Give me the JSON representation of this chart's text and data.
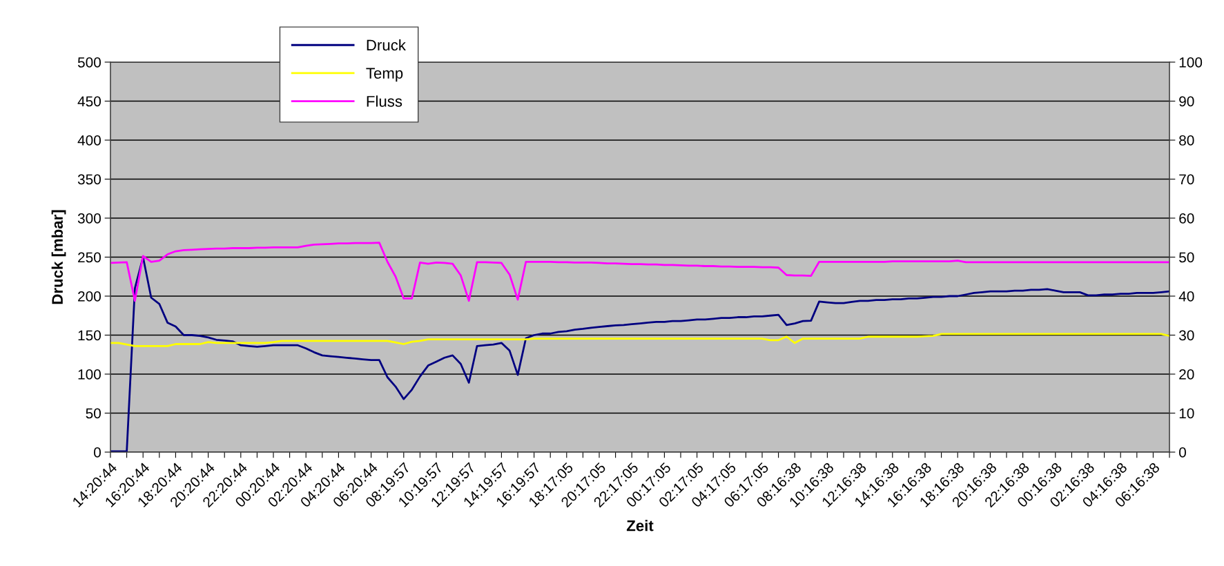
{
  "chart_data": {
    "type": "line",
    "xlabel": "Zeit",
    "ylabel": "Druck [mbar]",
    "ylim": [
      0,
      500
    ],
    "yticks": [
      0,
      50,
      100,
      150,
      200,
      250,
      300,
      350,
      400,
      450,
      500
    ],
    "y2lim": [
      0,
      100
    ],
    "y2ticks": [
      0,
      10,
      20,
      30,
      40,
      50,
      60,
      70,
      80,
      90,
      100
    ],
    "categories": [
      "14:20:44",
      null,
      null,
      null,
      "16:20:44",
      null,
      null,
      null,
      "18:20:44",
      null,
      null,
      null,
      "20:20:44",
      null,
      null,
      null,
      "22:20:44",
      null,
      null,
      null,
      "00:20:44",
      null,
      null,
      null,
      "02:20:44",
      null,
      null,
      null,
      "04:20:44",
      null,
      null,
      null,
      "06:20:44",
      null,
      null,
      null,
      "08:19:57",
      null,
      null,
      null,
      "10:19:57",
      null,
      null,
      null,
      "12:19:57",
      null,
      null,
      null,
      "14:19:57",
      null,
      null,
      null,
      "16:19:57",
      null,
      null,
      null,
      "18:17:05",
      null,
      null,
      null,
      "20:17:05",
      null,
      null,
      null,
      "22:17:05",
      null,
      null,
      null,
      "00:17:05",
      null,
      null,
      null,
      "02:17:05",
      null,
      null,
      null,
      "04:17:05",
      null,
      null,
      null,
      "06:17:05",
      null,
      null,
      null,
      "08:16:38",
      null,
      null,
      null,
      "10:16:38",
      null,
      null,
      null,
      "12:16:38",
      null,
      null,
      null,
      "14:16:38",
      null,
      null,
      null,
      "16:16:38",
      null,
      null,
      null,
      "18:16:38",
      null,
      null,
      null,
      "20:16:38",
      null,
      null,
      null,
      "22:16:38",
      null,
      null,
      null,
      "00:16:38",
      null,
      null,
      null,
      "02:16:38",
      null,
      null,
      null,
      "04:16:38",
      null,
      null,
      null,
      "06:16:38",
      null,
      null
    ],
    "grid": "y",
    "legend": "top left",
    "marker": "none",
    "line_style": "solid",
    "series": [
      {
        "name": "Druck",
        "color": "#000080",
        "values": [
          1,
          1,
          1,
          210,
          250,
          198,
          190,
          166,
          161,
          150,
          150,
          149,
          147,
          144,
          143,
          142,
          137,
          136,
          135,
          136,
          137,
          137,
          137,
          137,
          133,
          128,
          124,
          123,
          122,
          121,
          120,
          119,
          118,
          118,
          96,
          84,
          68,
          80,
          97,
          111,
          116,
          121,
          124,
          113,
          89,
          136,
          137,
          138,
          140,
          130,
          99,
          146,
          150,
          152,
          152,
          154,
          155,
          157,
          158,
          159.5,
          160.5,
          161.5,
          162.5,
          163,
          164,
          165,
          166,
          167,
          167,
          168,
          168,
          169,
          170,
          170,
          171,
          172,
          172,
          173,
          173,
          174,
          174,
          175,
          176,
          163,
          165,
          168,
          168.5,
          193,
          192,
          191,
          191,
          192.5,
          194,
          194,
          195,
          195,
          196,
          196,
          197,
          197,
          198,
          199,
          199,
          200,
          200,
          202,
          204,
          205,
          206,
          206,
          206,
          207,
          207,
          208,
          208,
          209,
          207,
          205,
          205,
          205,
          201,
          201,
          202,
          202,
          203,
          203,
          204,
          204,
          204,
          205,
          206
        ]
      },
      {
        "name": "Temp",
        "color": "#ffff00",
        "axis": "y2",
        "values": [
          28,
          28,
          27.6,
          27.2,
          27.2,
          27.2,
          27.2,
          27.2,
          27.7,
          27.7,
          27.7,
          27.7,
          28.2,
          28,
          28,
          28,
          28,
          28,
          28,
          28,
          28.2,
          28.5,
          28.5,
          28.5,
          28.5,
          28.5,
          28.5,
          28.5,
          28.5,
          28.5,
          28.5,
          28.5,
          28.5,
          28.5,
          28.5,
          28.1,
          27.7,
          28.3,
          28.5,
          28.9,
          28.9,
          28.9,
          28.9,
          28.9,
          28.9,
          28.9,
          28.9,
          28.9,
          28.9,
          28.9,
          28.9,
          28.9,
          29.1,
          29.1,
          29.1,
          29.1,
          29.1,
          29.1,
          29.1,
          29.1,
          29.1,
          29.1,
          29.1,
          29.1,
          29.1,
          29.1,
          29.1,
          29.1,
          29.1,
          29.1,
          29.1,
          29.1,
          29.1,
          29.1,
          29.1,
          29.1,
          29.1,
          29.1,
          29.1,
          29.1,
          29.1,
          28.7,
          28.7,
          29.6,
          28,
          29.1,
          29.1,
          29.1,
          29.1,
          29.1,
          29.1,
          29.1,
          29.1,
          29.6,
          29.6,
          29.6,
          29.6,
          29.6,
          29.6,
          29.6,
          29.7,
          29.8,
          30.3,
          30.3,
          30.3,
          30.3,
          30.3,
          30.3,
          30.3,
          30.3,
          30.3,
          30.3,
          30.3,
          30.3,
          30.3,
          30.3,
          30.3,
          30.3,
          30.3,
          30.3,
          30.3,
          30.3,
          30.3,
          30.3,
          30.3,
          30.3,
          30.3,
          30.3,
          30.3,
          30.3,
          29.8
        ]
      },
      {
        "name": "Fluss",
        "color": "#ff00ff",
        "axis": "y2",
        "values": [
          48.5,
          48.6,
          48.7,
          38.8,
          50.3,
          48.8,
          49.1,
          50.7,
          51.5,
          51.8,
          51.9,
          52,
          52.1,
          52.2,
          52.2,
          52.3,
          52.3,
          52.3,
          52.4,
          52.4,
          52.5,
          52.5,
          52.5,
          52.5,
          52.9,
          53.2,
          53.3,
          53.4,
          53.5,
          53.5,
          53.6,
          53.6,
          53.6,
          53.7,
          48.8,
          45,
          39.4,
          39.4,
          48.6,
          48.3,
          48.6,
          48.5,
          48.3,
          45.3,
          38.8,
          48.7,
          48.7,
          48.6,
          48.5,
          45.5,
          39.1,
          48.8,
          48.8,
          48.8,
          48.8,
          48.7,
          48.7,
          48.6,
          48.6,
          48.6,
          48.5,
          48.4,
          48.4,
          48.3,
          48.2,
          48.2,
          48.1,
          48.1,
          48,
          48,
          47.9,
          47.8,
          47.8,
          47.7,
          47.7,
          47.6,
          47.6,
          47.5,
          47.5,
          47.5,
          47.4,
          47.4,
          47.3,
          45.4,
          45.3,
          45.3,
          45.2,
          48.8,
          48.8,
          48.8,
          48.8,
          48.8,
          48.8,
          48.8,
          48.8,
          48.8,
          48.9,
          48.9,
          48.9,
          48.9,
          48.9,
          48.9,
          48.9,
          48.9,
          49.1,
          48.7,
          48.7,
          48.7,
          48.7,
          48.7,
          48.7,
          48.7,
          48.7,
          48.7,
          48.7,
          48.7,
          48.7,
          48.7,
          48.7,
          48.7,
          48.7,
          48.7,
          48.7,
          48.7,
          48.7,
          48.7,
          48.7,
          48.7,
          48.7,
          48.7,
          48.7
        ]
      }
    ]
  }
}
